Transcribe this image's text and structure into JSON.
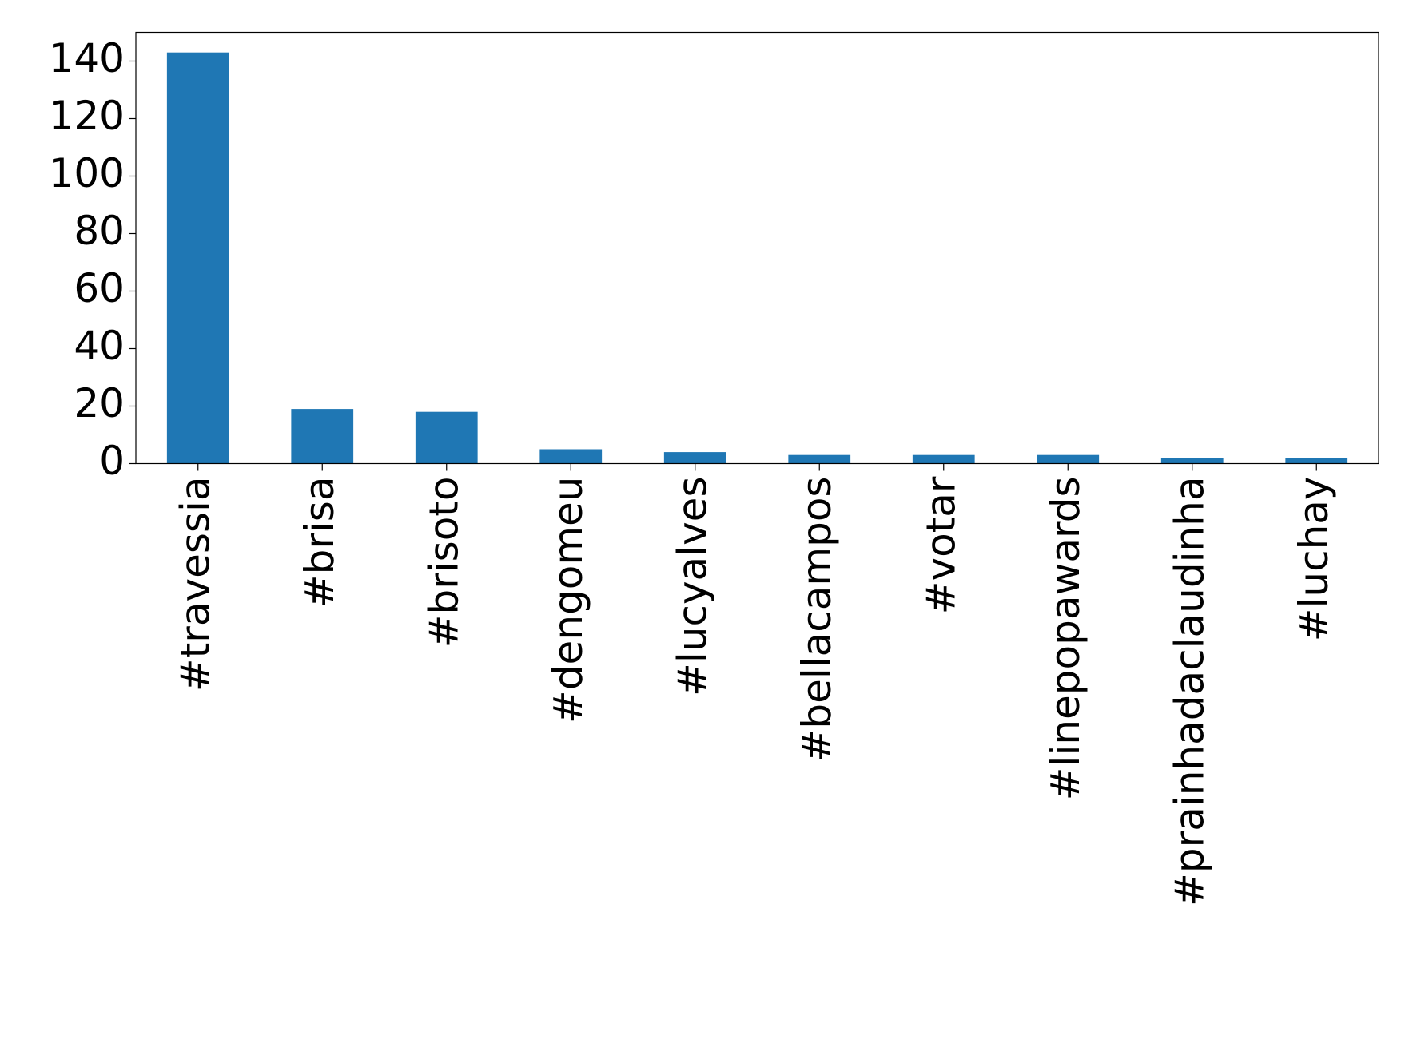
{
  "chart_data": {
    "type": "bar",
    "categories": [
      "#travessia",
      "#brisa",
      "#brisoto",
      "#dengomeu",
      "#lucyalves",
      "#bellacampos",
      "#votar",
      "#linepopawards",
      "#prainhadaclaudinha",
      "#luchay"
    ],
    "values": [
      143,
      19,
      18,
      5,
      4,
      3,
      3,
      3,
      2,
      2
    ],
    "color": "#1f77b4",
    "ylim": [
      0,
      150
    ],
    "yticks": [
      0,
      20,
      40,
      60,
      80,
      100,
      120,
      140
    ],
    "grid": false
  }
}
